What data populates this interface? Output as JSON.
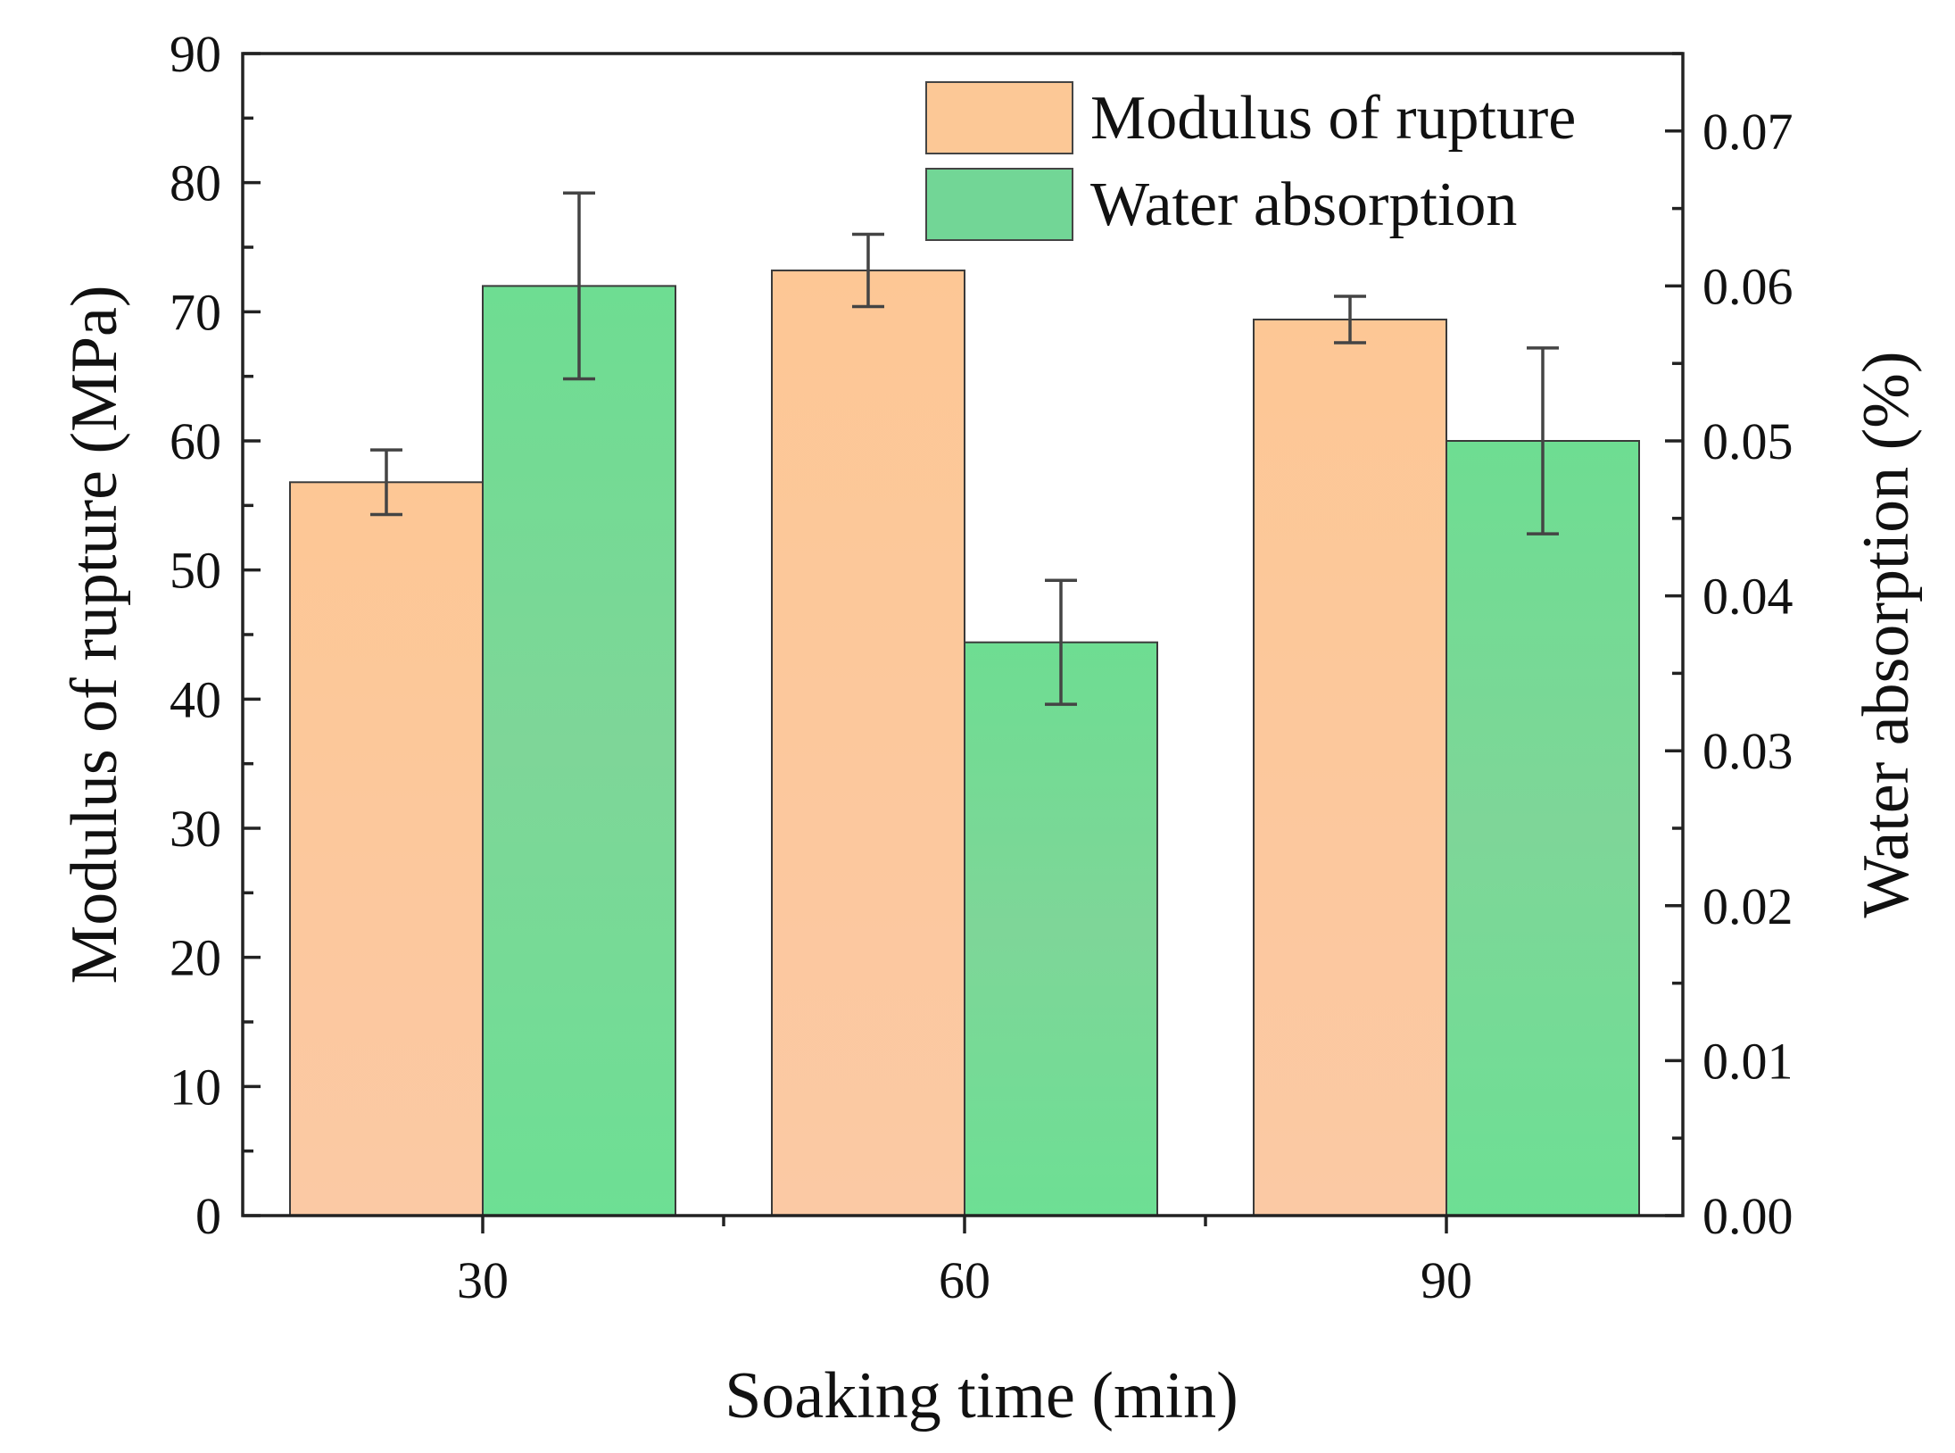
{
  "chart_data": {
    "type": "bar",
    "categories": [
      "30",
      "60",
      "90"
    ],
    "xlabel": "Soaking time (min)",
    "ylabel_left": "Modulus of rupture (MPa)",
    "ylabel_right": "Water absorption (%)",
    "ylim_left": [
      0,
      90
    ],
    "ylim_right": [
      0,
      0.075
    ],
    "yticks_left": [
      "0",
      "10",
      "20",
      "30",
      "40",
      "50",
      "60",
      "70",
      "80",
      "90"
    ],
    "yticks_right": [
      "0.00",
      "0.01",
      "0.02",
      "0.03",
      "0.04",
      "0.05",
      "0.06",
      "0.07"
    ],
    "legend_position": "top-right",
    "grid": false,
    "series": [
      {
        "name": "Modulus of rupture",
        "axis": "left",
        "values": [
          56.8,
          73.2,
          69.4
        ],
        "errors": [
          2.5,
          2.8,
          1.8
        ],
        "color": "#fcc896"
      },
      {
        "name": "Water absorption",
        "axis": "right",
        "values": [
          0.06,
          0.037,
          0.05
        ],
        "errors": [
          0.006,
          0.004,
          0.006
        ],
        "color": "#72d696"
      }
    ]
  }
}
